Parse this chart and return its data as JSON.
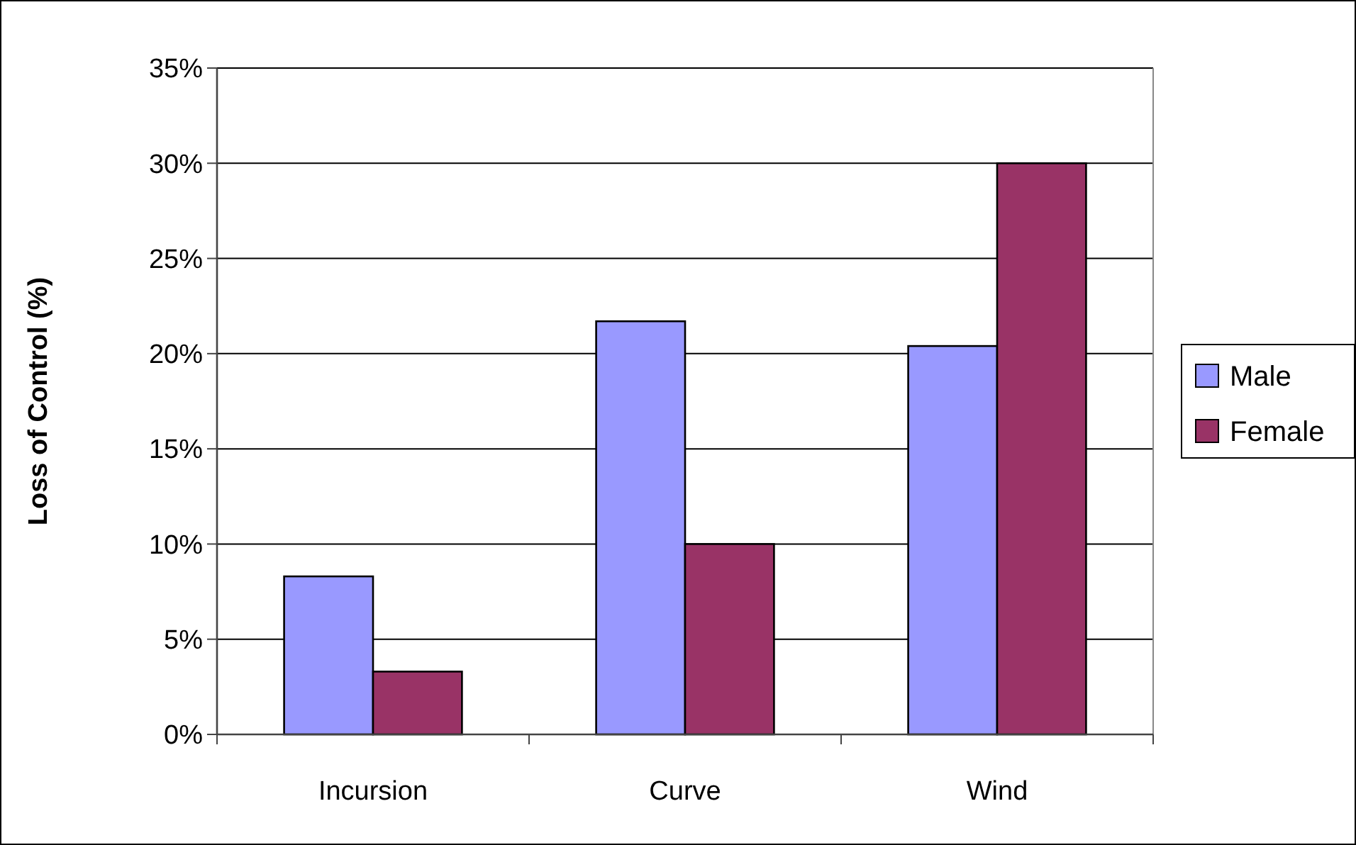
{
  "chart_data": {
    "type": "bar",
    "ylabel": "Loss of Control (%)",
    "categories": [
      "Incursion",
      "Curve",
      "Wind"
    ],
    "series": [
      {
        "name": "Male",
        "color": "#9999ff",
        "values": [
          8.3,
          21.7,
          20.4
        ]
      },
      {
        "name": "Female",
        "color": "#993366",
        "values": [
          3.3,
          10.0,
          30.0
        ]
      }
    ],
    "ylim": [
      0,
      35
    ],
    "yticks": [
      {
        "value": 0,
        "label": "0%"
      },
      {
        "value": 5,
        "label": "5%"
      },
      {
        "value": 10,
        "label": "10%"
      },
      {
        "value": 15,
        "label": "15%"
      },
      {
        "value": 20,
        "label": "20%"
      },
      {
        "value": 25,
        "label": "25%"
      },
      {
        "value": 30,
        "label": "30%"
      },
      {
        "value": 35,
        "label": "35%"
      }
    ],
    "grid": "y",
    "legend": "right"
  }
}
